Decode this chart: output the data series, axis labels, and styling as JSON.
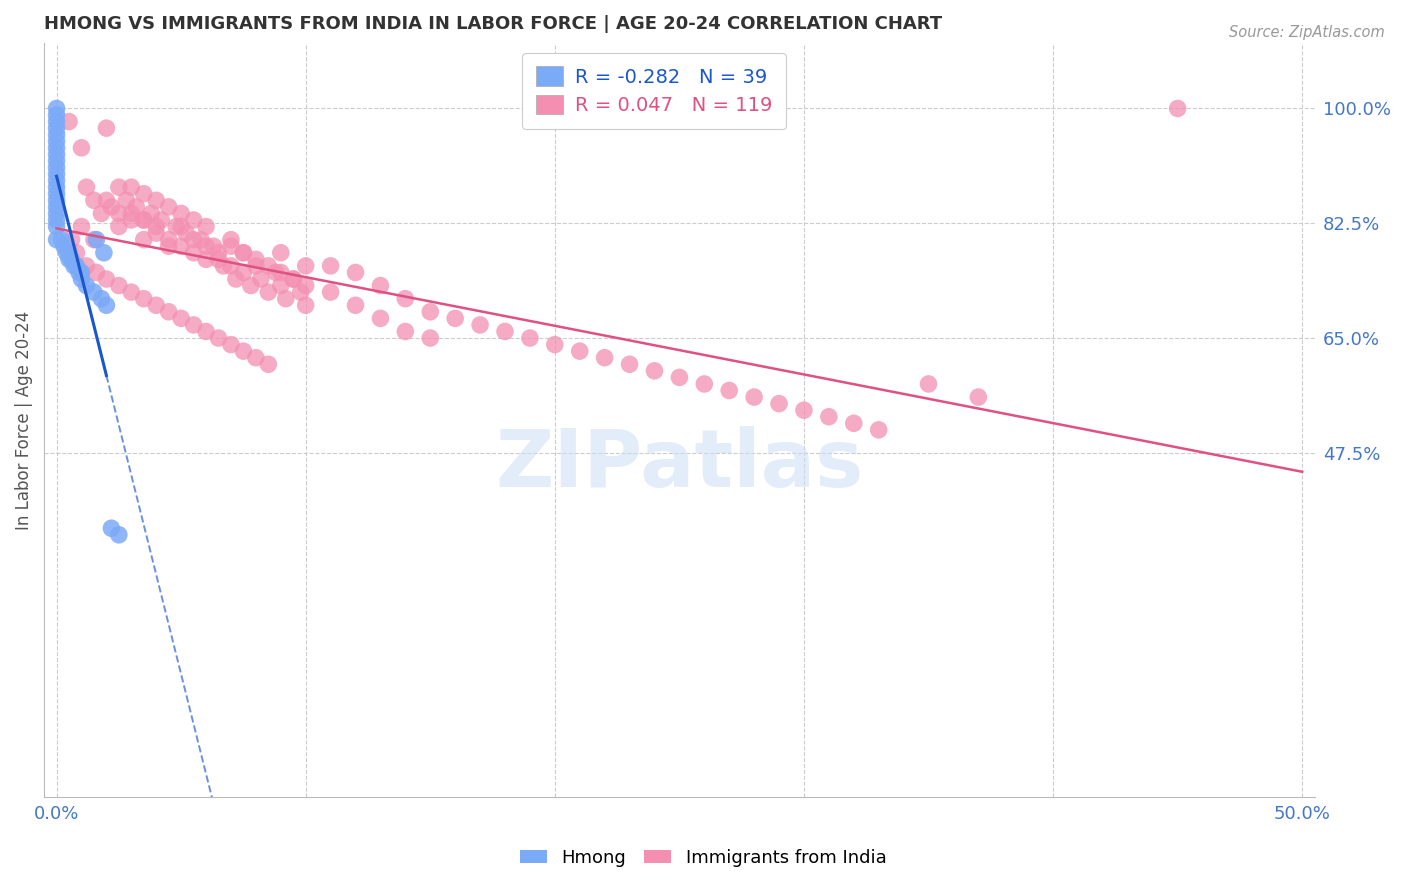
{
  "title": "HMONG VS IMMIGRANTS FROM INDIA IN LABOR FORCE | AGE 20-24 CORRELATION CHART",
  "source": "Source: ZipAtlas.com",
  "ylabel": "In Labor Force | Age 20-24",
  "y_ticks": [
    0.475,
    0.65,
    0.825,
    1.0
  ],
  "y_tick_labels": [
    "47.5%",
    "65.0%",
    "82.5%",
    "100.0%"
  ],
  "x_ticks": [
    0.0,
    0.1,
    0.2,
    0.3,
    0.4,
    0.5
  ],
  "x_tick_labels": [
    "0.0%",
    "",
    "",
    "",
    "",
    "50.0%"
  ],
  "y_min": -0.05,
  "y_max": 1.1,
  "x_min": -0.005,
  "x_max": 0.505,
  "hmong_R": -0.282,
  "hmong_N": 39,
  "india_R": 0.047,
  "india_N": 119,
  "hmong_color": "#7baaf7",
  "hmong_line_color": "#1a56cc",
  "india_color": "#f48fb1",
  "india_line_color": "#e05080",
  "watermark": "ZIPatlas",
  "background_color": "#ffffff",
  "grid_color": "#cccccc",
  "title_color": "#333333",
  "legend_label_hmong": "Hmong",
  "legend_label_india": "Immigrants from India",
  "tick_label_color": "#4477cc",
  "source_color": "#999999",
  "hmong_pts_x": [
    0.0,
    0.0,
    0.0,
    0.0,
    0.0,
    0.0,
    0.0,
    0.0,
    0.0,
    0.0,
    0.0,
    0.0,
    0.0,
    0.0,
    0.0,
    0.0,
    0.0,
    0.0,
    0.0,
    0.0,
    0.002,
    0.003,
    0.004,
    0.005,
    0.005,
    0.006,
    0.007,
    0.008,
    0.009,
    0.01,
    0.01,
    0.012,
    0.015,
    0.018,
    0.02,
    0.022,
    0.025,
    0.016,
    0.019
  ],
  "hmong_pts_y": [
    1.0,
    0.99,
    0.98,
    0.97,
    0.96,
    0.95,
    0.94,
    0.93,
    0.92,
    0.91,
    0.9,
    0.89,
    0.88,
    0.87,
    0.86,
    0.85,
    0.84,
    0.83,
    0.82,
    0.8,
    0.8,
    0.79,
    0.78,
    0.78,
    0.77,
    0.77,
    0.76,
    0.76,
    0.75,
    0.75,
    0.74,
    0.73,
    0.72,
    0.71,
    0.7,
    0.36,
    0.35,
    0.8,
    0.78
  ],
  "india_pts_x": [
    0.005,
    0.01,
    0.012,
    0.015,
    0.018,
    0.02,
    0.022,
    0.025,
    0.025,
    0.028,
    0.03,
    0.03,
    0.032,
    0.035,
    0.035,
    0.038,
    0.04,
    0.04,
    0.042,
    0.045,
    0.045,
    0.048,
    0.05,
    0.05,
    0.052,
    0.055,
    0.055,
    0.058,
    0.06,
    0.06,
    0.063,
    0.065,
    0.067,
    0.07,
    0.07,
    0.072,
    0.075,
    0.075,
    0.078,
    0.08,
    0.082,
    0.085,
    0.088,
    0.09,
    0.09,
    0.092,
    0.095,
    0.098,
    0.1,
    0.1,
    0.01,
    0.015,
    0.02,
    0.025,
    0.03,
    0.035,
    0.035,
    0.04,
    0.045,
    0.05,
    0.055,
    0.06,
    0.065,
    0.07,
    0.075,
    0.08,
    0.085,
    0.09,
    0.095,
    0.1,
    0.11,
    0.11,
    0.12,
    0.12,
    0.13,
    0.13,
    0.14,
    0.14,
    0.15,
    0.15,
    0.16,
    0.17,
    0.18,
    0.19,
    0.2,
    0.21,
    0.22,
    0.23,
    0.24,
    0.25,
    0.26,
    0.27,
    0.28,
    0.29,
    0.3,
    0.31,
    0.32,
    0.33,
    0.35,
    0.37,
    0.006,
    0.008,
    0.012,
    0.016,
    0.02,
    0.025,
    0.03,
    0.035,
    0.04,
    0.045,
    0.05,
    0.055,
    0.06,
    0.065,
    0.07,
    0.075,
    0.08,
    0.085,
    0.45
  ],
  "india_pts_y": [
    0.98,
    0.94,
    0.88,
    0.86,
    0.84,
    0.97,
    0.85,
    0.88,
    0.84,
    0.86,
    0.88,
    0.83,
    0.85,
    0.87,
    0.83,
    0.84,
    0.86,
    0.82,
    0.83,
    0.85,
    0.8,
    0.82,
    0.84,
    0.79,
    0.81,
    0.83,
    0.78,
    0.8,
    0.82,
    0.77,
    0.79,
    0.78,
    0.76,
    0.8,
    0.76,
    0.74,
    0.78,
    0.75,
    0.73,
    0.76,
    0.74,
    0.72,
    0.75,
    0.78,
    0.73,
    0.71,
    0.74,
    0.72,
    0.76,
    0.7,
    0.82,
    0.8,
    0.86,
    0.82,
    0.84,
    0.8,
    0.83,
    0.81,
    0.79,
    0.82,
    0.8,
    0.79,
    0.77,
    0.79,
    0.78,
    0.77,
    0.76,
    0.75,
    0.74,
    0.73,
    0.76,
    0.72,
    0.75,
    0.7,
    0.73,
    0.68,
    0.71,
    0.66,
    0.69,
    0.65,
    0.68,
    0.67,
    0.66,
    0.65,
    0.64,
    0.63,
    0.62,
    0.61,
    0.6,
    0.59,
    0.58,
    0.57,
    0.56,
    0.55,
    0.54,
    0.53,
    0.52,
    0.51,
    0.58,
    0.56,
    0.8,
    0.78,
    0.76,
    0.75,
    0.74,
    0.73,
    0.72,
    0.71,
    0.7,
    0.69,
    0.68,
    0.67,
    0.66,
    0.65,
    0.64,
    0.63,
    0.62,
    0.61,
    1.0
  ]
}
